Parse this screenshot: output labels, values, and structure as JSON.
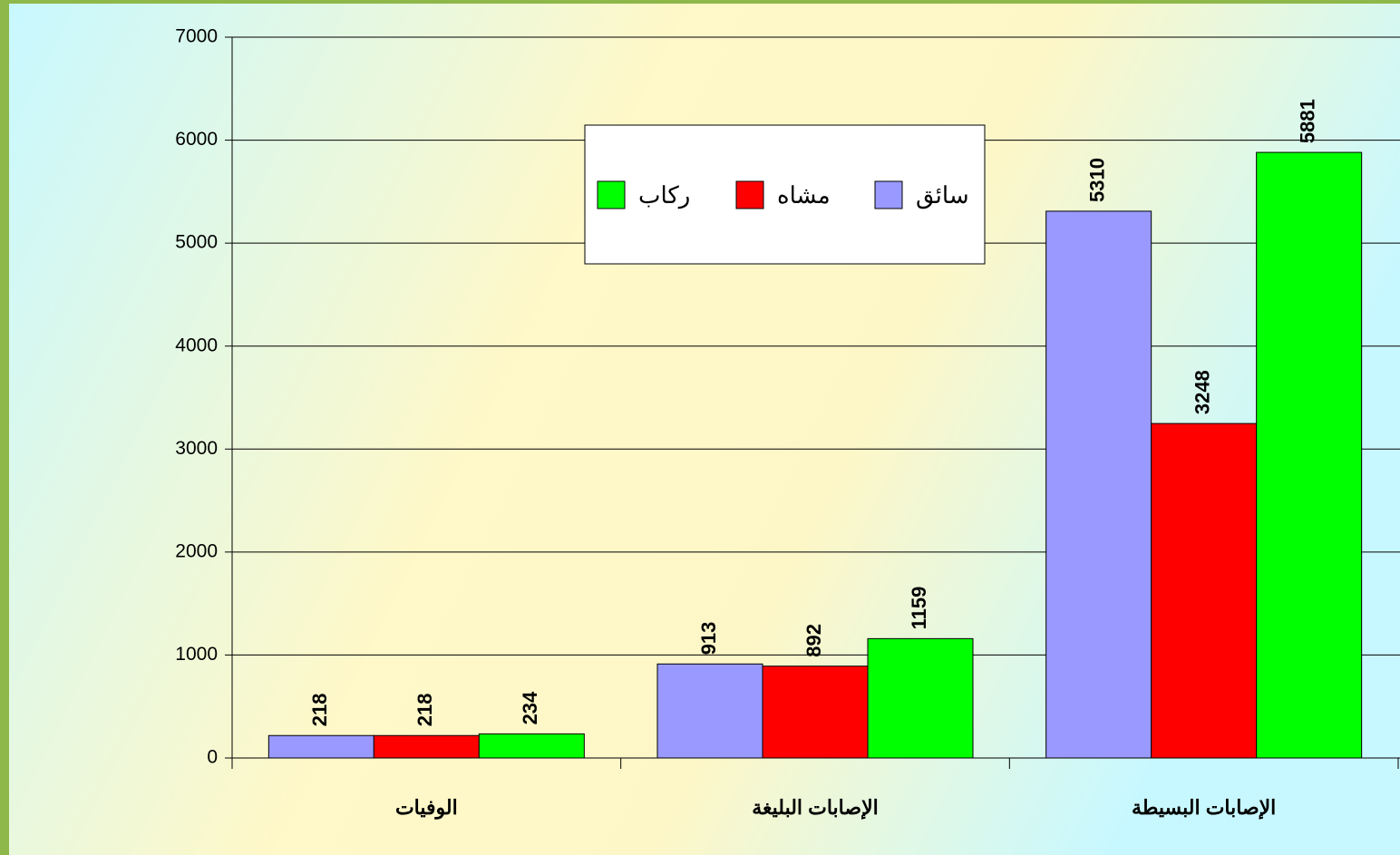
{
  "chart_data": {
    "type": "bar",
    "categories": [
      "الوفيات",
      "الإصابات البليغة",
      "الإصابات البسيطة"
    ],
    "series": [
      {
        "name": "سائق",
        "color": "#9999ff",
        "values": [
          218,
          913,
          5310
        ]
      },
      {
        "name": "مشاه",
        "color": "#ff0000",
        "values": [
          218,
          892,
          3248
        ]
      },
      {
        "name": "ركاب",
        "color": "#00ff00",
        "values": [
          234,
          1159,
          5881
        ]
      }
    ],
    "ylim": [
      0,
      7000
    ],
    "yticks": [
      0,
      1000,
      2000,
      3000,
      4000,
      5000,
      6000,
      7000
    ],
    "grid": true,
    "legend": "top"
  }
}
